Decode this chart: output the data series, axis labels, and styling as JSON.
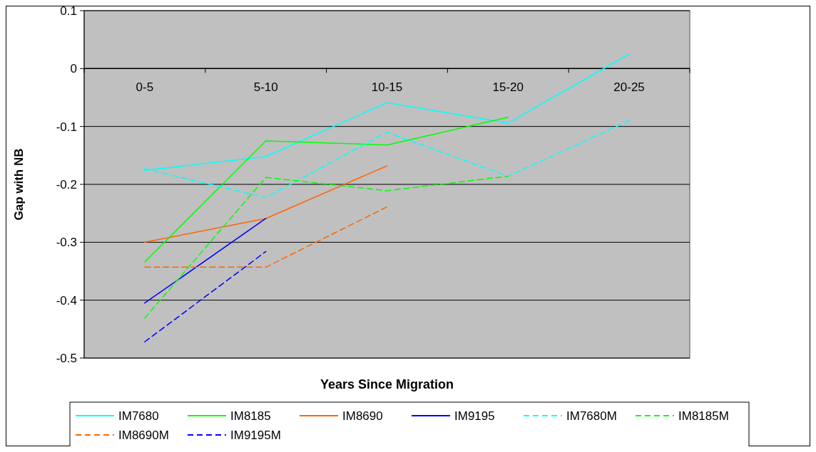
{
  "chart_data": {
    "type": "line",
    "xlabel": "Years Since Migration",
    "ylabel": "Gap with NB",
    "categories": [
      "0-5",
      "5-10",
      "10-15",
      "15-20",
      "20-25"
    ],
    "ylim": [
      -0.5,
      0.1
    ],
    "yticks": [
      -0.5,
      -0.4,
      -0.3,
      -0.2,
      -0.1,
      0,
      0.1
    ],
    "grid": "y",
    "legend": "bottom",
    "marker": "none",
    "series": [
      {
        "name": "IM7680",
        "color": "#00ffff",
        "line_style": "solid",
        "values": [
          -0.176,
          -0.152,
          -0.059,
          -0.094,
          0.025
        ]
      },
      {
        "name": "IM8185",
        "color": "#00ff00",
        "line_style": "solid",
        "values": [
          -0.334,
          -0.125,
          -0.132,
          -0.084,
          null
        ]
      },
      {
        "name": "IM8690",
        "color": "#ff6600",
        "line_style": "solid",
        "values": [
          -0.3,
          -0.259,
          -0.168,
          null,
          null
        ]
      },
      {
        "name": "IM9195",
        "color": "#0000ff",
        "line_style": "solid",
        "values": [
          -0.405,
          -0.259,
          null,
          null,
          null
        ]
      },
      {
        "name": "IM7680M",
        "color": "#00ffff",
        "line_style": "dashed",
        "values": [
          -0.173,
          -0.223,
          -0.11,
          -0.186,
          -0.09
        ]
      },
      {
        "name": "IM8185M",
        "color": "#00ff00",
        "line_style": "dashed",
        "values": [
          -0.431,
          -0.188,
          -0.211,
          -0.186,
          null
        ]
      },
      {
        "name": "IM8690M",
        "color": "#ff6600",
        "line_style": "dashed",
        "values": [
          -0.343,
          -0.343,
          -0.239,
          null,
          null
        ]
      },
      {
        "name": "IM9195M",
        "color": "#0000ff",
        "line_style": "dashed",
        "values": [
          -0.472,
          -0.316,
          null,
          null,
          null
        ]
      }
    ]
  }
}
